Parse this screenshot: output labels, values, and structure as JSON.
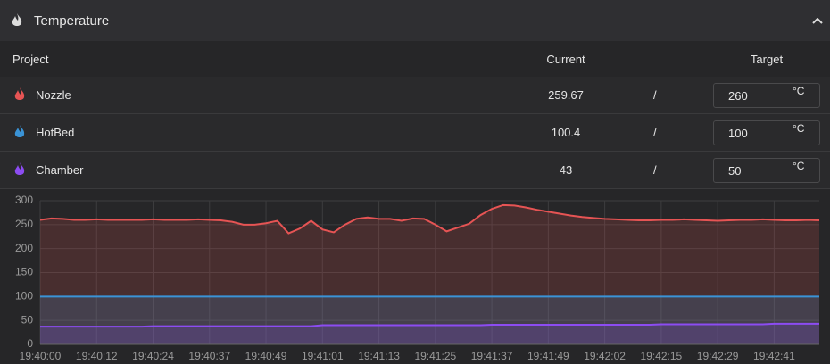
{
  "header": {
    "title": "Temperature"
  },
  "table": {
    "columns": [
      "Project",
      "Current",
      "Target"
    ],
    "rows": [
      {
        "name": "Nozzle",
        "current": 259.67,
        "separator": "/",
        "target": 260,
        "unit": "°C"
      },
      {
        "name": "HotBed",
        "current": 100.4,
        "separator": "/",
        "target": 100,
        "unit": "°C"
      },
      {
        "name": "Chamber",
        "current": 43,
        "separator": "/",
        "target": 50,
        "unit": "°C"
      }
    ]
  },
  "chart_data": {
    "type": "line",
    "grid": true,
    "x": [
      "19:40:00",
      null,
      null,
      null,
      null,
      "19:40:12",
      null,
      null,
      null,
      null,
      "19:40:24",
      null,
      null,
      null,
      null,
      "19:40:37",
      null,
      null,
      null,
      null,
      "19:40:49",
      null,
      null,
      null,
      null,
      "19:41:01",
      null,
      null,
      null,
      null,
      "19:41:13",
      null,
      null,
      null,
      null,
      "19:41:25",
      null,
      null,
      null,
      null,
      "19:41:37",
      null,
      null,
      null,
      null,
      "19:41:49",
      null,
      null,
      null,
      null,
      "19:42:02",
      null,
      null,
      null,
      null,
      "19:42:15",
      null,
      null,
      null,
      null,
      "19:42:29",
      null,
      null,
      null,
      null,
      "19:42:41",
      null,
      null,
      null,
      null
    ],
    "ylim": [
      0,
      300
    ],
    "yticks": [
      0,
      50,
      100,
      150,
      200,
      250,
      300
    ],
    "series": [
      {
        "name": "Nozzle",
        "color": "#e65454",
        "values": [
          260,
          263,
          262,
          260,
          260,
          261,
          260,
          260,
          260,
          260,
          261,
          260,
          260,
          260,
          261,
          260,
          259,
          256,
          250,
          250,
          253,
          258,
          232,
          242,
          258,
          240,
          234,
          250,
          262,
          265,
          262,
          262,
          258,
          263,
          262,
          250,
          236,
          244,
          252,
          270,
          283,
          291,
          290,
          286,
          281,
          277,
          273,
          269,
          266,
          264,
          262,
          261,
          260,
          259,
          259,
          260,
          260,
          261,
          260,
          259,
          258,
          259,
          260,
          260,
          261,
          260,
          259,
          259,
          260,
          259
        ]
      },
      {
        "name": "HotBed",
        "color": "#3a93d6",
        "values": [
          100,
          100,
          100,
          100,
          100,
          100,
          100,
          100,
          100,
          100,
          100,
          100,
          100,
          100,
          100,
          100,
          100,
          100,
          100,
          100,
          100,
          100,
          100,
          100,
          100,
          100,
          100,
          100,
          100,
          100,
          100,
          100,
          100,
          100,
          100,
          100,
          100,
          100,
          100,
          100,
          100,
          100,
          100,
          100,
          100,
          100,
          100,
          100,
          100,
          100,
          100,
          100,
          100,
          100,
          100,
          100,
          100,
          100,
          100,
          100,
          100,
          100,
          100,
          100,
          100,
          100,
          100,
          100,
          100,
          100
        ]
      },
      {
        "name": "Chamber",
        "color": "#8c4cf2",
        "values": [
          37,
          37,
          37,
          37,
          37,
          37,
          37,
          37,
          37,
          37,
          38,
          38,
          38,
          38,
          38,
          38,
          38,
          38,
          38,
          38,
          38,
          38,
          38,
          38,
          38,
          40,
          40,
          40,
          40,
          40,
          40,
          40,
          40,
          40,
          40,
          40,
          40,
          40,
          40,
          40,
          41,
          41,
          41,
          41,
          41,
          41,
          41,
          41,
          41,
          41,
          41,
          41,
          41,
          41,
          41,
          42,
          42,
          42,
          42,
          42,
          42,
          42,
          42,
          42,
          42,
          43,
          43,
          43,
          43,
          43
        ]
      }
    ]
  }
}
